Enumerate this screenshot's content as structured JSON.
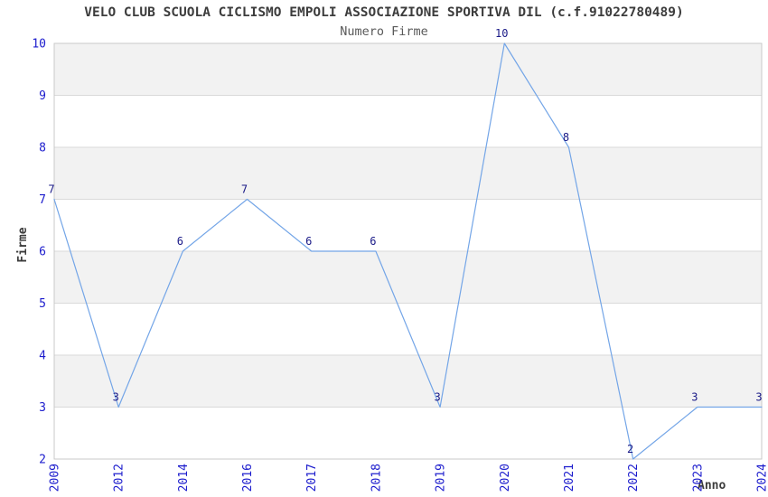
{
  "page": {
    "background": "#ffffff"
  },
  "chart_data": {
    "type": "line",
    "title": "VELO CLUB SCUOLA CICLISMO EMPOLI ASSOCIAZIONE SPORTIVA DIL (c.f.91022780489)",
    "subtitle": "Numero Firme",
    "xlabel": "Anno",
    "ylabel": "Firme",
    "categories": [
      "2009",
      "2012",
      "2014",
      "2016",
      "2017",
      "2018",
      "2019",
      "2020",
      "2021",
      "2022",
      "2023",
      "2024"
    ],
    "values": [
      7,
      3,
      6,
      7,
      6,
      6,
      3,
      10,
      8,
      2,
      3,
      3
    ],
    "ylim": [
      2,
      10
    ],
    "y_ticks": [
      2,
      3,
      4,
      5,
      6,
      7,
      8,
      9,
      10
    ],
    "grid": "horizontal",
    "background_bands": "alternating",
    "legend": "none",
    "point_labels": true,
    "colors": {
      "line": "#73a5e7",
      "band_alt": "#f2f2f2",
      "band_base": "#ffffff",
      "gridline": "#d9d9d9",
      "plot_border": "#c9c9c9",
      "tick_label": "#1c1ccd",
      "data_label": "#191987",
      "title": "#3c3c3c",
      "subtitle": "#595959",
      "axis_label": "#3c3c3c"
    }
  }
}
